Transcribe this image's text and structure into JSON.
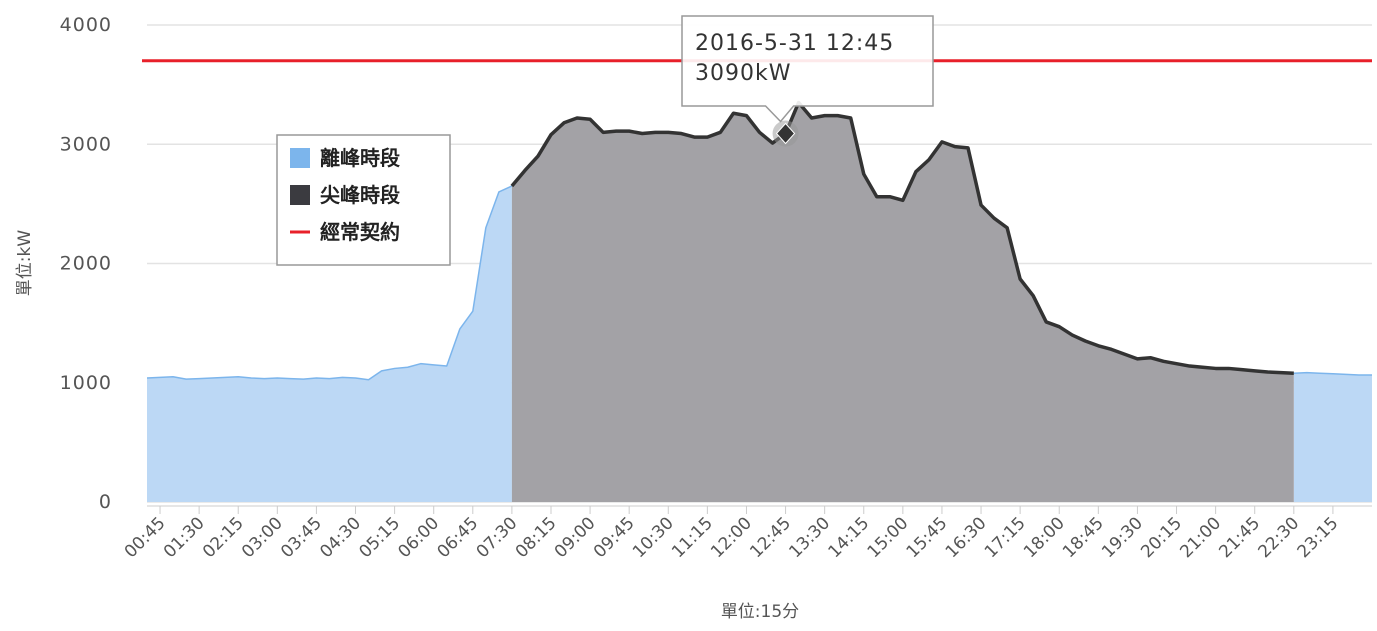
{
  "chart_data": {
    "type": "area",
    "y_label": "單位:kW",
    "x_label": "單位:15分",
    "categories": [
      null,
      "00:45",
      null,
      null,
      "01:30",
      null,
      null,
      "02:15",
      null,
      null,
      "03:00",
      null,
      null,
      "03:45",
      null,
      null,
      "04:30",
      null,
      null,
      "05:15",
      null,
      null,
      "06:00",
      null,
      null,
      "06:45",
      null,
      null,
      "07:30",
      null,
      null,
      "08:15",
      null,
      null,
      "09:00",
      null,
      null,
      "09:45",
      null,
      null,
      "10:30",
      null,
      null,
      "11:15",
      null,
      null,
      "12:00",
      null,
      null,
      "12:45",
      null,
      null,
      "13:30",
      null,
      null,
      "14:15",
      null,
      null,
      "15:00",
      null,
      null,
      "15:45",
      null,
      null,
      "16:30",
      null,
      null,
      "17:15",
      null,
      null,
      "18:00",
      null,
      null,
      "18:45",
      null,
      null,
      "19:30",
      null,
      null,
      "20:15",
      null,
      null,
      "21:00",
      null,
      null,
      "21:45",
      null,
      null,
      "22:30",
      null,
      null,
      "23:15",
      null,
      null,
      null
    ],
    "series": [
      {
        "name": "離峰時段",
        "color": "#7cb5ec",
        "fill": "#bcd8f5",
        "values": [
          1040,
          1045,
          1050,
          1030,
          1035,
          1040,
          1045,
          1050,
          1040,
          1035,
          1040,
          1035,
          1030,
          1040,
          1035,
          1045,
          1040,
          1025,
          1100,
          1120,
          1130,
          1160,
          1150,
          1140,
          1450,
          1600,
          2300,
          2600,
          2650,
          null,
          null,
          null,
          null,
          null,
          null,
          null,
          null,
          null,
          null,
          null,
          null,
          null,
          null,
          null,
          null,
          null,
          null,
          null,
          null,
          null,
          null,
          null,
          null,
          null,
          null,
          null,
          null,
          null,
          null,
          null,
          null,
          null,
          null,
          null,
          null,
          null,
          null,
          null,
          null,
          null,
          null,
          null,
          null,
          null,
          null,
          null,
          null,
          null,
          null,
          null,
          null,
          null,
          null,
          null,
          null,
          null,
          null,
          null,
          1080,
          1085,
          1080,
          1075,
          1070,
          1065,
          1065
        ]
      },
      {
        "name": "尖峰時段",
        "color": "#333333",
        "fill": "#a3a2a6",
        "values": [
          null,
          null,
          null,
          null,
          null,
          null,
          null,
          null,
          null,
          null,
          null,
          null,
          null,
          null,
          null,
          null,
          null,
          null,
          null,
          null,
          null,
          null,
          null,
          null,
          null,
          null,
          null,
          null,
          2650,
          2780,
          2900,
          3080,
          3180,
          3220,
          3210,
          3100,
          3110,
          3110,
          3090,
          3100,
          3100,
          3090,
          3060,
          3060,
          3100,
          3260,
          3240,
          3100,
          3010,
          3090,
          3350,
          3220,
          3240,
          3240,
          3220,
          2750,
          2560,
          2560,
          2530,
          2770,
          2870,
          3020,
          2980,
          2970,
          2490,
          2380,
          2300,
          1870,
          1730,
          1510,
          1470,
          1400,
          1350,
          1310,
          1280,
          1240,
          1200,
          1210,
          1180,
          1160,
          1140,
          1130,
          1120,
          1120,
          1110,
          1100,
          1090,
          1085,
          1080,
          null,
          null,
          null,
          null,
          null,
          null
        ]
      }
    ],
    "reference_line": {
      "name": "經常契約",
      "value": 3700,
      "color": "#e8202a"
    },
    "tooltip": {
      "title": "2016-5-31 12:45",
      "label": "3090kW",
      "series": 1,
      "index": 49
    },
    "ylim": [
      0,
      4000
    ],
    "yticks": [
      0,
      1000,
      2000,
      3000,
      4000
    ],
    "grid": true,
    "legend": "left"
  }
}
